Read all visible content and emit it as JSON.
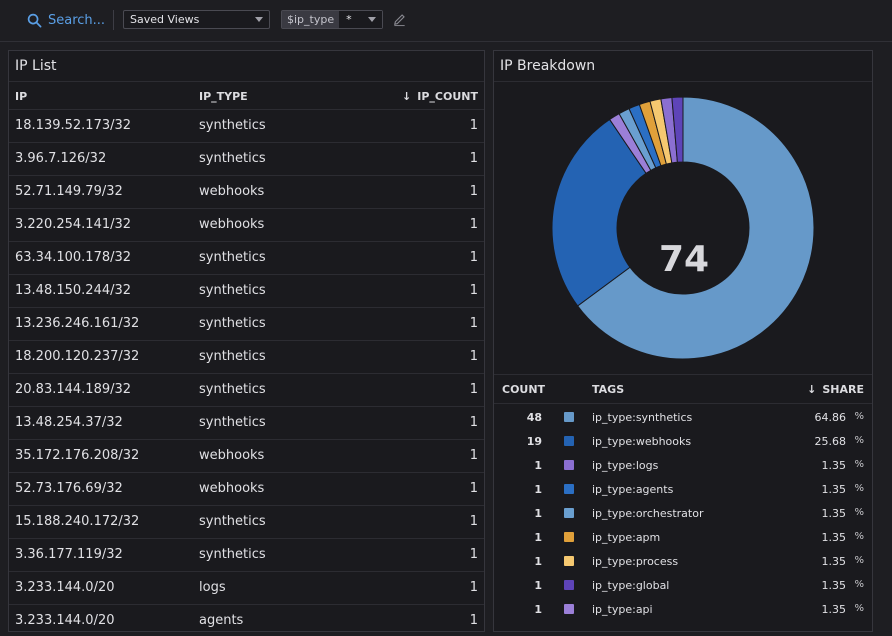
{
  "toolbar": {
    "search_label": "Search...",
    "saved_views_label": "Saved Views",
    "template_var_name": "$ip_type",
    "template_var_value": "*"
  },
  "ip_list": {
    "title": "IP List",
    "columns": {
      "ip": "IP",
      "ip_type": "IP_TYPE",
      "ip_count": "IP_COUNT",
      "sort_arrow": "↓"
    },
    "rows": [
      {
        "ip": "18.139.52.173/32",
        "type": "synthetics",
        "count": "1"
      },
      {
        "ip": "3.96.7.126/32",
        "type": "synthetics",
        "count": "1"
      },
      {
        "ip": "52.71.149.79/32",
        "type": "webhooks",
        "count": "1"
      },
      {
        "ip": "3.220.254.141/32",
        "type": "webhooks",
        "count": "1"
      },
      {
        "ip": "63.34.100.178/32",
        "type": "synthetics",
        "count": "1"
      },
      {
        "ip": "13.48.150.244/32",
        "type": "synthetics",
        "count": "1"
      },
      {
        "ip": "13.236.246.161/32",
        "type": "synthetics",
        "count": "1"
      },
      {
        "ip": "18.200.120.237/32",
        "type": "synthetics",
        "count": "1"
      },
      {
        "ip": "20.83.144.189/32",
        "type": "synthetics",
        "count": "1"
      },
      {
        "ip": "13.48.254.37/32",
        "type": "synthetics",
        "count": "1"
      },
      {
        "ip": "35.172.176.208/32",
        "type": "webhooks",
        "count": "1"
      },
      {
        "ip": "52.73.176.69/32",
        "type": "webhooks",
        "count": "1"
      },
      {
        "ip": "15.188.240.172/32",
        "type": "synthetics",
        "count": "1"
      },
      {
        "ip": "3.36.177.119/32",
        "type": "synthetics",
        "count": "1"
      },
      {
        "ip": "3.233.144.0/20",
        "type": "logs",
        "count": "1"
      },
      {
        "ip": "3.233.144.0/20",
        "type": "agents",
        "count": "1"
      }
    ]
  },
  "ip_breakdown": {
    "title": "IP Breakdown",
    "total": "74",
    "columns": {
      "count": "COUNT",
      "tags": "TAGS",
      "share": "SHARE",
      "sort_arrow": "↓"
    },
    "pct_symbol": "%",
    "legend": [
      {
        "count": "48",
        "tag": "ip_type:synthetics",
        "share": "64.86",
        "color": "#6699c9"
      },
      {
        "count": "19",
        "tag": "ip_type:webhooks",
        "share": "25.68",
        "color": "#2463b3"
      },
      {
        "count": "1",
        "tag": "ip_type:logs",
        "share": "1.35",
        "color": "#8b6fd1"
      },
      {
        "count": "1",
        "tag": "ip_type:agents",
        "share": "1.35",
        "color": "#2b6fc4"
      },
      {
        "count": "1",
        "tag": "ip_type:orchestrator",
        "share": "1.35",
        "color": "#6a9fd0"
      },
      {
        "count": "1",
        "tag": "ip_type:apm",
        "share": "1.35",
        "color": "#e0a03a"
      },
      {
        "count": "1",
        "tag": "ip_type:process",
        "share": "1.35",
        "color": "#f5c870"
      },
      {
        "count": "1",
        "tag": "ip_type:global",
        "share": "1.35",
        "color": "#5e44b8"
      },
      {
        "count": "1",
        "tag": "ip_type:api",
        "share": "1.35",
        "color": "#9b7fd8"
      }
    ]
  },
  "chart_data": {
    "type": "pie",
    "categories": [
      "ip_type:synthetics",
      "ip_type:webhooks",
      "ip_type:api",
      "ip_type:orchestrator",
      "ip_type:agents",
      "ip_type:apm",
      "ip_type:process",
      "ip_type:logs",
      "ip_type:global"
    ],
    "values": [
      48,
      19,
      1,
      1,
      1,
      1,
      1,
      1,
      1
    ],
    "colors": [
      "#6699c9",
      "#2463b3",
      "#9b7fd8",
      "#6a9fd0",
      "#2b6fc4",
      "#e0a03a",
      "#f5c870",
      "#8b6fd1",
      "#5e44b8"
    ],
    "title": "IP Breakdown",
    "total": 74,
    "donut": true
  }
}
